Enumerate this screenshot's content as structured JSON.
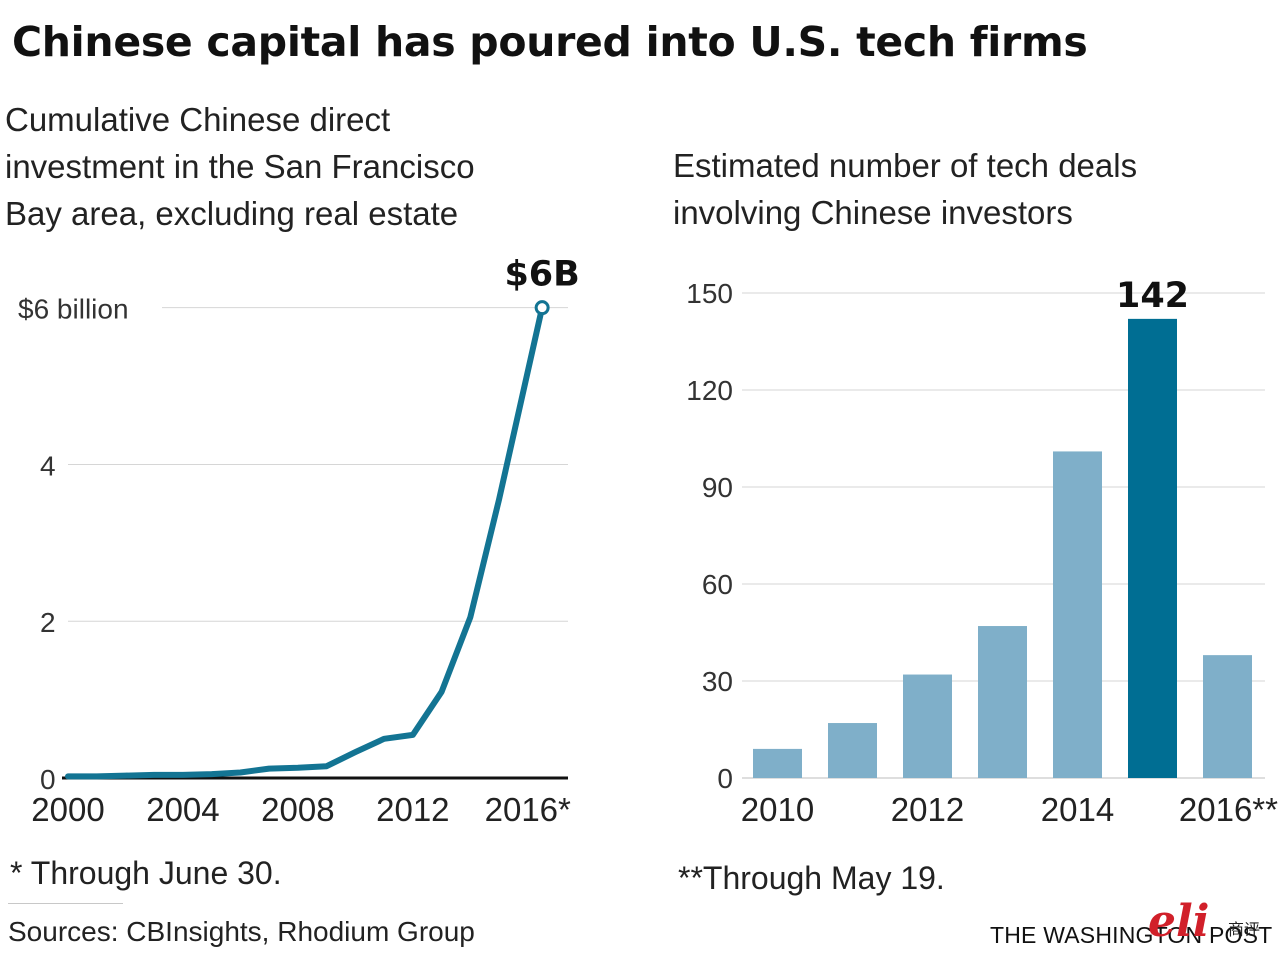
{
  "title": "Chinese capital has poured into U.S. tech firms",
  "chart_data": [
    {
      "type": "line",
      "subtitle_lines": [
        "Cumulative Chinese direct",
        "investment in the San Francisco",
        "Bay area, excluding real estate"
      ],
      "x": [
        2000,
        2001,
        2002,
        2003,
        2004,
        2005,
        2006,
        2007,
        2008,
        2009,
        2010,
        2011,
        2012,
        2013,
        2014,
        2015,
        2016.5
      ],
      "values": [
        0.02,
        0.02,
        0.03,
        0.04,
        0.04,
        0.05,
        0.07,
        0.12,
        0.13,
        0.15,
        0.33,
        0.5,
        0.55,
        1.1,
        2.05,
        3.55,
        6.0
      ],
      "ylim": [
        0,
        6.2
      ],
      "xlim": [
        2000,
        2017.4
      ],
      "y_ticks": [
        {
          "value": 0,
          "label": "0"
        },
        {
          "value": 2,
          "label": "2"
        },
        {
          "value": 4,
          "label": "4"
        },
        {
          "value": 6,
          "label": "$6 billion"
        }
      ],
      "x_ticks": [
        {
          "value": 2000,
          "label": "2000"
        },
        {
          "value": 2004,
          "label": "2004"
        },
        {
          "value": 2008,
          "label": "2008"
        },
        {
          "value": 2012,
          "label": "2012"
        },
        {
          "value": 2016,
          "label": "2016*"
        }
      ],
      "end_label": "$6B",
      "grid": true,
      "color": "#137493"
    },
    {
      "type": "bar",
      "subtitle_lines": [
        "Estimated number of tech deals",
        "involving Chinese investors"
      ],
      "categories": [
        "2010",
        "2011",
        "2012",
        "2013",
        "2014",
        "2015",
        "2016**"
      ],
      "values": [
        9,
        17,
        32,
        47,
        101,
        142,
        38
      ],
      "highlight_index": 5,
      "highlight_label": "142",
      "ylim": [
        0,
        150
      ],
      "y_ticks": [
        0,
        30,
        60,
        90,
        120,
        150
      ],
      "x_tick_labels": [
        {
          "index": 0,
          "label": "2010"
        },
        {
          "index": 2,
          "label": "2012"
        },
        {
          "index": 4,
          "label": "2014"
        },
        {
          "index": 6,
          "label": "2016**"
        }
      ],
      "grid": true,
      "bar_color": "#7fafc9",
      "highlight_color": "#006e93"
    }
  ],
  "notes": {
    "left": "* Through June 30.",
    "right": "**Through May 19."
  },
  "sources": "Sources: CBInsights, Rhodium Group",
  "credit": "THE WASHINGTON POST",
  "watermark": {
    "mark": "eli",
    "small": "商评"
  }
}
